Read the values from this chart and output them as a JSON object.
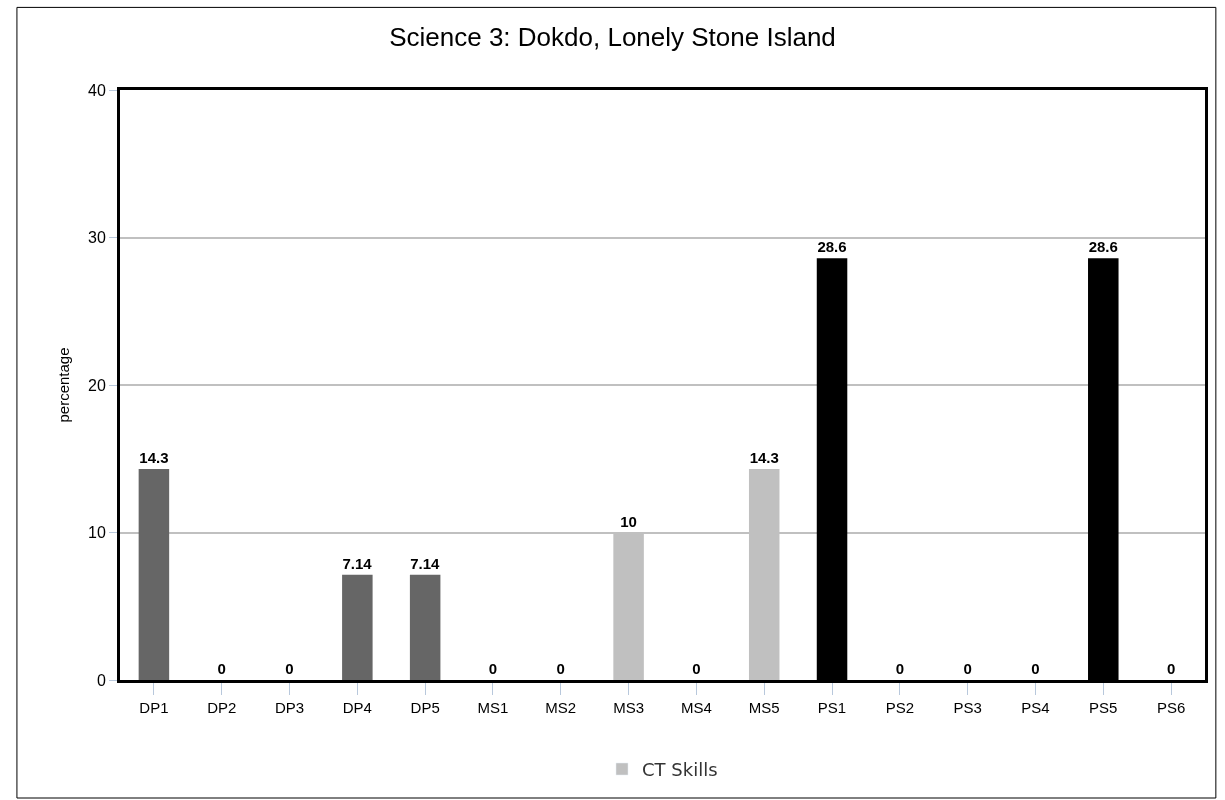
{
  "chart_data": {
    "type": "bar",
    "title": "Science 3: Dokdo, Lonely Stone Island",
    "ylabel": "percentage",
    "categories": [
      "DP1",
      "DP2",
      "DP3",
      "DP4",
      "DP5",
      "MS1",
      "MS2",
      "MS3",
      "MS4",
      "MS5",
      "PS1",
      "PS2",
      "PS3",
      "PS4",
      "PS5",
      "PS6"
    ],
    "series": [
      {
        "name": "CT Skills",
        "color": "#c0c0c0",
        "colors": [
          "#666666",
          "#666666",
          "#666666",
          "#666666",
          "#666666",
          "#c0c0c0",
          "#c0c0c0",
          "#c0c0c0",
          "#c0c0c0",
          "#c0c0c0",
          "#000000",
          "#000000",
          "#000000",
          "#000000",
          "#000000",
          "#000000"
        ],
        "values": [
          14.3,
          0,
          0,
          7.14,
          7.14,
          0,
          0,
          10,
          0,
          14.3,
          28.6,
          0,
          0,
          0,
          28.6,
          0
        ]
      }
    ],
    "ylim": [
      0,
      40
    ],
    "yticks": [
      0,
      10,
      20,
      30,
      40
    ],
    "grid": "y",
    "legend": "bottom",
    "data_labels": true
  }
}
